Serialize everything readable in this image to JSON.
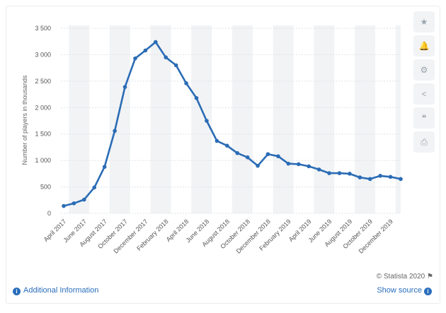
{
  "chart_data": {
    "type": "line",
    "title": "",
    "xlabel": "",
    "ylabel": "Number of players in thousands",
    "ylim": [
      0,
      3500
    ],
    "yticks": [
      0,
      500,
      1000,
      1500,
      2000,
      2500,
      3000,
      3500
    ],
    "ytick_labels": [
      "0",
      "500",
      "1 000",
      "1 500",
      "2 000",
      "2 500",
      "3 000",
      "3 500"
    ],
    "grid": true,
    "x_tick_labels": [
      "April 2017",
      "June 2017",
      "August 2017",
      "October 2017",
      "December 2017",
      "February 2018",
      "April 2018",
      "June 2018",
      "August 2018",
      "October 2018",
      "December 2018",
      "February 2019",
      "April 2019",
      "June 2019",
      "August 2019",
      "October 2019",
      "December 2019"
    ],
    "x": [
      "Apr 2017",
      "May 2017",
      "Jun 2017",
      "Jul 2017",
      "Aug 2017",
      "Sep 2017",
      "Oct 2017",
      "Nov 2017",
      "Dec 2017",
      "Jan 2018",
      "Feb 2018",
      "Mar 2018",
      "Apr 2018",
      "May 2018",
      "Jun 2018",
      "Jul 2018",
      "Aug 2018",
      "Sep 2018",
      "Oct 2018",
      "Nov 2018",
      "Dec 2018",
      "Jan 2019",
      "Feb 2019",
      "Mar 2019",
      "Apr 2019",
      "May 2019",
      "Jun 2019",
      "Jul 2019",
      "Aug 2019",
      "Sep 2019",
      "Oct 2019",
      "Nov 2019",
      "Dec 2019",
      "Jan 2020"
    ],
    "series": [
      {
        "name": "",
        "color": "#2b6cb5",
        "values": [
          140,
          190,
          260,
          490,
          880,
          1560,
          2390,
          2930,
          3080,
          3240,
          2950,
          2800,
          2460,
          2180,
          1750,
          1370,
          1280,
          1140,
          1060,
          900,
          1120,
          1080,
          940,
          930,
          890,
          830,
          760,
          760,
          750,
          680,
          650,
          710,
          690,
          650
        ]
      }
    ]
  },
  "credit": "© Statista 2020",
  "footer": {
    "additional_info": "Additional Information",
    "show_source": "Show source"
  },
  "toolbar": {
    "icons": [
      "star-icon",
      "bell-icon",
      "gear-icon",
      "share-icon",
      "quote-icon",
      "print-icon"
    ],
    "glyphs": [
      "★",
      "🔔",
      "⚙",
      "<",
      "❝",
      "⎙"
    ]
  },
  "colors": {
    "line": "#2b6cb5",
    "band": "#f1f3f5",
    "grid": "#dfe3e8",
    "link": "#2a6ebb"
  }
}
